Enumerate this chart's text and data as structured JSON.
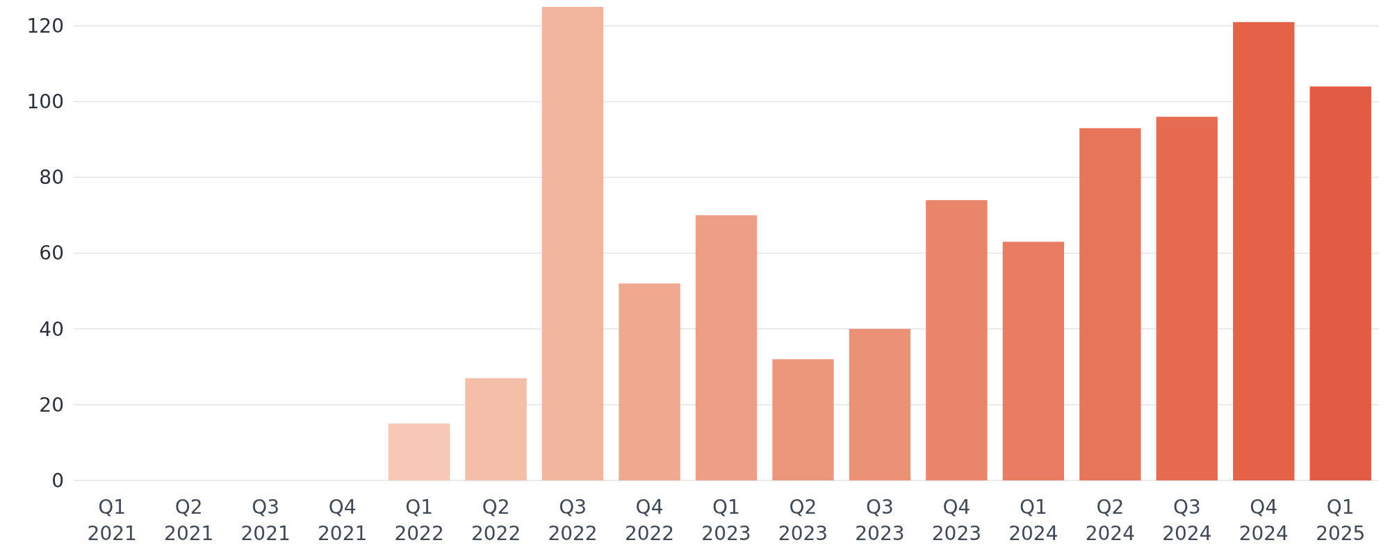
{
  "chart_data": {
    "type": "bar",
    "categories": [
      "Q1\n2021",
      "Q2\n2021",
      "Q3\n2021",
      "Q4\n2021",
      "Q1\n2022",
      "Q2\n2022",
      "Q3\n2022",
      "Q4\n2022",
      "Q1\n2023",
      "Q2\n2023",
      "Q3\n2023",
      "Q4\n2023",
      "Q1\n2024",
      "Q2\n2024",
      "Q3\n2024",
      "Q4\n2024",
      "Q1\n2025"
    ],
    "values": [
      0,
      0,
      0,
      0,
      15,
      27,
      125,
      52,
      70,
      32,
      40,
      74,
      63,
      93,
      96,
      121,
      104
    ],
    "colors": [
      "#fbd9cc",
      "#fad5c6",
      "#f9d0c0",
      "#f8ccba",
      "#f7c8b6",
      "#f5bea9",
      "#f2b69e",
      "#f0a88e",
      "#ee9e84",
      "#ec977b",
      "#eb9175",
      "#ea856b",
      "#e97c63",
      "#e7755a",
      "#e66b51",
      "#e56249",
      "#e25b43"
    ],
    "ylim": [
      0,
      125
    ],
    "yticks": [
      0,
      20,
      40,
      60,
      80,
      100,
      120
    ],
    "grid": "y"
  }
}
